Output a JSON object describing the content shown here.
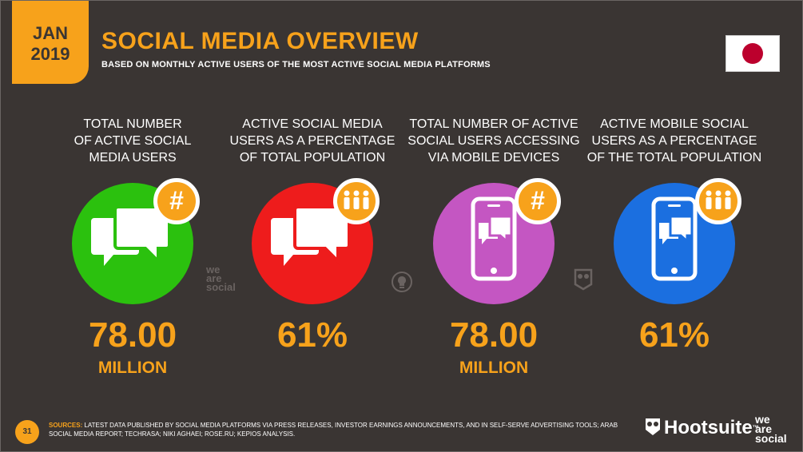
{
  "date": {
    "month": "JAN",
    "year": "2019"
  },
  "title": "SOCIAL MEDIA OVERVIEW",
  "subtitle": "BASED ON MONTHLY ACTIVE USERS OF THE MOST ACTIVE SOCIAL MEDIA PLATFORMS",
  "flag": {
    "country_icon": "japan-flag-icon",
    "colors": {
      "field": "#ffffff",
      "sun": "#bc002d"
    }
  },
  "colors": {
    "accent": "#f7a21b",
    "background": "#3a3533",
    "green": "#2bc10e",
    "red": "#ee1c1c",
    "purple": "#c456c2",
    "blue": "#1b6fe0"
  },
  "stats": [
    {
      "label_lines": [
        "TOTAL NUMBER",
        "OF ACTIVE SOCIAL",
        "MEDIA USERS"
      ],
      "value": "78.00",
      "unit": "MILLION",
      "icon": "chat-bubbles-icon",
      "badge": "hash-icon",
      "color": "#2bc10e"
    },
    {
      "label_lines": [
        "ACTIVE SOCIAL MEDIA",
        "USERS AS A PERCENTAGE",
        "OF TOTAL POPULATION"
      ],
      "value": "61%",
      "unit": "",
      "icon": "chat-bubbles-icon",
      "badge": "people-icon",
      "color": "#ee1c1c"
    },
    {
      "label_lines": [
        "TOTAL NUMBER OF ACTIVE",
        "SOCIAL USERS ACCESSING",
        "VIA MOBILE DEVICES"
      ],
      "value": "78.00",
      "unit": "MILLION",
      "icon": "mobile-chat-icon",
      "badge": "hash-icon",
      "color": "#c456c2"
    },
    {
      "label_lines": [
        "ACTIVE MOBILE SOCIAL",
        "USERS AS A PERCENTAGE",
        "OF THE TOTAL POPULATION"
      ],
      "value": "61%",
      "unit": "",
      "icon": "mobile-chat-icon",
      "badge": "people-icon",
      "color": "#1b6fe0"
    }
  ],
  "watermark": [
    "we",
    "are",
    "social"
  ],
  "page_number": "31",
  "sources": {
    "label": "SOURCES:",
    "text": "LATEST DATA PUBLISHED BY SOCIAL MEDIA PLATFORMS VIA PRESS RELEASES, INVESTOR EARNINGS ANNOUNCEMENTS, AND IN SELF-SERVE ADVERTISING TOOLS; ARAB SOCIAL MEDIA REPORT; TECHRASA; NIKI AGHAEI; ROSE.RU; KEPIOS ANALYSIS."
  },
  "brand": {
    "hootsuite": "Hootsuite",
    "tm": "™",
    "we_are_social": [
      "we",
      "are",
      "social"
    ]
  }
}
